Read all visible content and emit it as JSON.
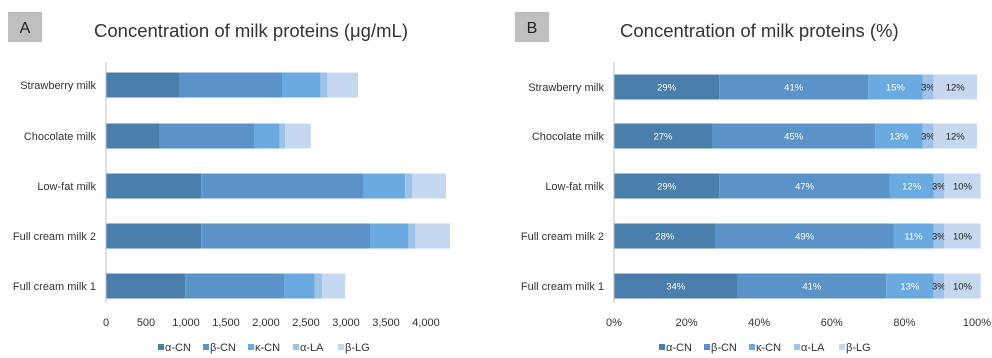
{
  "colors": {
    "α-CN": "#4a7eac",
    "β-CN": "#5b93c8",
    "κ-CN": "#6aaae0",
    "α-LA": "#9fc3e8",
    "β-LG": "#c5d8f0"
  },
  "chart_data": [
    {
      "panel": "A",
      "type": "bar",
      "orientation": "horizontal",
      "stacked": true,
      "title": "Concentration of milk proteins (μg/mL)",
      "categories": [
        "Strawberry milk",
        "Chocolate milk",
        "Low-fat milk",
        "Full cream milk 2",
        "Full cream milk 1"
      ],
      "series": [
        {
          "name": "α-CN",
          "values": [
            920,
            670,
            1190,
            1190,
            990
          ]
        },
        {
          "name": "β-CN",
          "values": [
            1280,
            1180,
            2030,
            2110,
            1240
          ]
        },
        {
          "name": "κ-CN",
          "values": [
            480,
            320,
            520,
            480,
            380
          ]
        },
        {
          "name": "α-LA",
          "values": [
            90,
            70,
            90,
            90,
            90
          ]
        },
        {
          "name": "β-LG",
          "values": [
            380,
            320,
            420,
            430,
            290
          ]
        }
      ],
      "xlim": [
        0,
        4300
      ],
      "xticks": [
        0,
        500,
        1000,
        1500,
        2000,
        2500,
        3000,
        3500,
        4000
      ],
      "xtick_labels": [
        "0",
        "500",
        "1,000",
        "1,500",
        "2,000",
        "2,500",
        "3,000",
        "3,500",
        "4,000"
      ],
      "legend": "bottom"
    },
    {
      "panel": "B",
      "type": "bar",
      "orientation": "horizontal",
      "stacked": true,
      "title": "Concentration of milk proteins (%)",
      "categories": [
        "Strawberry milk",
        "Chocolate milk",
        "Low-fat milk",
        "Full cream milk 2",
        "Full cream milk 1"
      ],
      "series": [
        {
          "name": "α-CN",
          "values": [
            29,
            27,
            29,
            28,
            34
          ]
        },
        {
          "name": "β-CN",
          "values": [
            41,
            45,
            47,
            49,
            41
          ]
        },
        {
          "name": "κ-CN",
          "values": [
            15,
            13,
            12,
            11,
            13
          ]
        },
        {
          "name": "α-LA",
          "values": [
            3,
            3,
            3,
            3,
            3
          ]
        },
        {
          "name": "β-LG",
          "values": [
            12,
            12,
            10,
            10,
            10
          ]
        }
      ],
      "data_labels": [
        [
          "29%",
          "41%",
          "15%",
          "3%",
          "12%"
        ],
        [
          "27%",
          "45%",
          "13%",
          "3%",
          "12%"
        ],
        [
          "29%",
          "47%",
          "12%",
          "3%",
          "10%"
        ],
        [
          "28%",
          "49%",
          "11%",
          "3%",
          "10%"
        ],
        [
          "34%",
          "41%",
          "13%",
          "3%",
          "10%"
        ]
      ],
      "xlim": [
        0,
        100
      ],
      "xticks": [
        0,
        20,
        40,
        60,
        80,
        100
      ],
      "xtick_labels": [
        "0%",
        "20%",
        "40%",
        "60%",
        "80%",
        "100%"
      ],
      "legend": "bottom"
    }
  ]
}
